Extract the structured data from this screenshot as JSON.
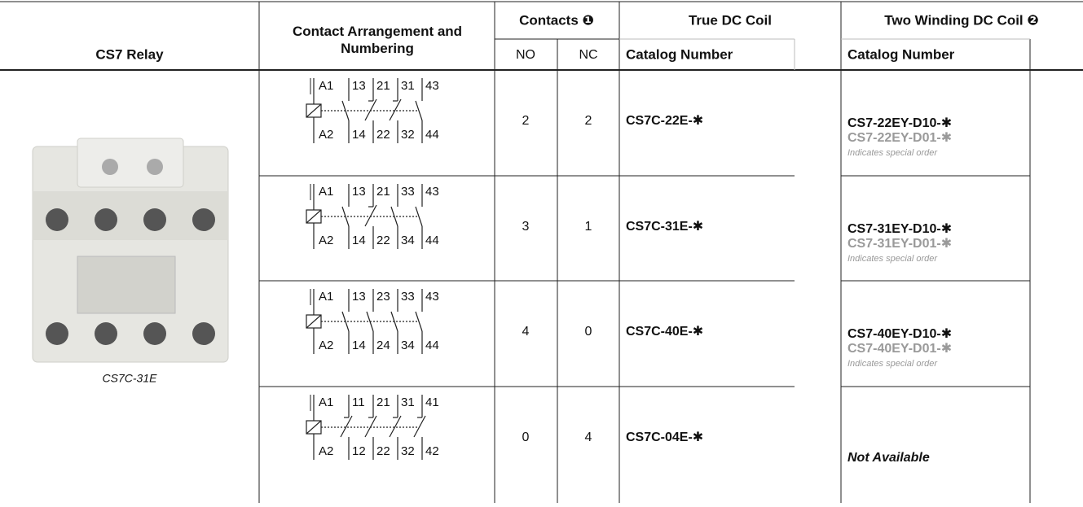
{
  "table": {
    "headers": {
      "relay": "CS7 Relay",
      "arrangement": "Contact Arrangement and Numbering",
      "contacts": "Contacts ❶",
      "no": "NO",
      "nc": "NC",
      "true_dc": "True DC Coil",
      "true_dc_catalog": "Catalog Number",
      "two_winding": "Two Winding DC Coil ❷",
      "two_winding_catalog": "Catalog Number"
    },
    "image_caption": "CS7C-31E",
    "rows": [
      {
        "diagram": {
          "coil_top": "A1",
          "coil_bottom": "A2",
          "top": [
            "13",
            "21",
            "31",
            "43"
          ],
          "bottom": [
            "14",
            "22",
            "32",
            "44"
          ]
        },
        "no": 2,
        "nc": 2,
        "catalog": "CS7C-22E-✱",
        "two_winding": {
          "standard": "CS7-22EY-D10-✱",
          "special": "CS7-22EY-D01-✱",
          "note": "Indicates special order"
        }
      },
      {
        "diagram": {
          "coil_top": "A1",
          "coil_bottom": "A2",
          "top": [
            "13",
            "21",
            "33",
            "43"
          ],
          "bottom": [
            "14",
            "22",
            "34",
            "44"
          ]
        },
        "no": 3,
        "nc": 1,
        "catalog": "CS7C-31E-✱",
        "two_winding": {
          "standard": "CS7-31EY-D10-✱",
          "special": "CS7-31EY-D01-✱",
          "note": "Indicates special order"
        }
      },
      {
        "diagram": {
          "coil_top": "A1",
          "coil_bottom": "A2",
          "top": [
            "13",
            "23",
            "33",
            "43"
          ],
          "bottom": [
            "14",
            "24",
            "34",
            "44"
          ]
        },
        "no": 4,
        "nc": 0,
        "catalog": "CS7C-40E-✱",
        "two_winding": {
          "standard": "CS7-40EY-D10-✱",
          "special": "CS7-40EY-D01-✱",
          "note": "Indicates special order"
        }
      },
      {
        "diagram": {
          "coil_top": "A1",
          "coil_bottom": "A2",
          "top": [
            "11",
            "21",
            "31",
            "41"
          ],
          "bottom": [
            "12",
            "22",
            "32",
            "42"
          ]
        },
        "no": 0,
        "nc": 4,
        "catalog": "CS7C-04E-✱",
        "two_winding": {
          "not_available": "Not Available"
        }
      }
    ]
  }
}
